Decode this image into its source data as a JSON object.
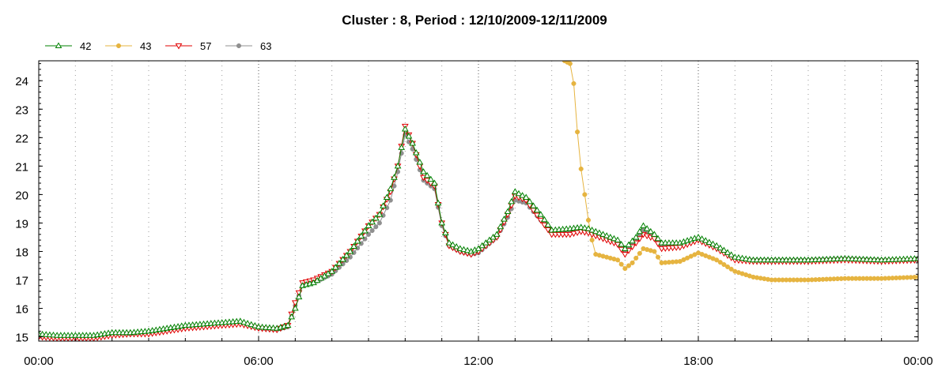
{
  "chart_data": {
    "type": "line",
    "title": "Cluster : 8, Period : 12/10/2009-12/11/2009",
    "xlabel": "",
    "ylabel": "",
    "x_unit": "hours",
    "xlim": [
      0,
      24
    ],
    "ylim": [
      14.85,
      24.7
    ],
    "x_ticks": [
      {
        "value": 0,
        "label": "00:00"
      },
      {
        "value": 6,
        "label": "06:00"
      },
      {
        "value": 12,
        "label": "12:00"
      },
      {
        "value": 18,
        "label": "18:00"
      },
      {
        "value": 24,
        "label": "00:00"
      }
    ],
    "y_ticks": [
      15,
      16,
      17,
      18,
      19,
      20,
      21,
      22,
      23,
      24
    ],
    "grid": "vertical dotted every hour",
    "legend_position": "top-left",
    "series": [
      {
        "name": "42",
        "color": "#008000",
        "marker": "triangle-up",
        "points": [
          [
            0,
            15.1
          ],
          [
            0.5,
            15.05
          ],
          [
            1,
            15.05
          ],
          [
            1.5,
            15.05
          ],
          [
            2,
            15.15
          ],
          [
            2.5,
            15.15
          ],
          [
            3,
            15.2
          ],
          [
            3.5,
            15.3
          ],
          [
            4,
            15.4
          ],
          [
            4.5,
            15.45
          ],
          [
            5,
            15.5
          ],
          [
            5.5,
            15.55
          ],
          [
            6,
            15.35
          ],
          [
            6.5,
            15.3
          ],
          [
            6.8,
            15.4
          ],
          [
            7.0,
            16.0
          ],
          [
            7.2,
            16.8
          ],
          [
            7.5,
            16.9
          ],
          [
            8,
            17.3
          ],
          [
            8.5,
            18.0
          ],
          [
            9,
            18.9
          ],
          [
            9.3,
            19.3
          ],
          [
            9.6,
            20.2
          ],
          [
            9.8,
            21.0
          ],
          [
            10.0,
            22.3
          ],
          [
            10.2,
            21.8
          ],
          [
            10.5,
            20.8
          ],
          [
            10.8,
            20.4
          ],
          [
            11,
            19.0
          ],
          [
            11.2,
            18.3
          ],
          [
            11.5,
            18.1
          ],
          [
            11.8,
            18.0
          ],
          [
            12,
            18.1
          ],
          [
            12.5,
            18.6
          ],
          [
            12.8,
            19.4
          ],
          [
            13,
            20.1
          ],
          [
            13.3,
            19.9
          ],
          [
            13.7,
            19.3
          ],
          [
            14,
            18.75
          ],
          [
            14.5,
            18.8
          ],
          [
            14.8,
            18.85
          ],
          [
            15,
            18.8
          ],
          [
            15.5,
            18.55
          ],
          [
            15.8,
            18.4
          ],
          [
            16,
            18.1
          ],
          [
            16.3,
            18.5
          ],
          [
            16.5,
            18.9
          ],
          [
            16.8,
            18.6
          ],
          [
            17,
            18.3
          ],
          [
            17.5,
            18.3
          ],
          [
            18,
            18.5
          ],
          [
            18.5,
            18.2
          ],
          [
            19,
            17.8
          ],
          [
            19.5,
            17.7
          ],
          [
            20,
            17.7
          ],
          [
            21,
            17.7
          ],
          [
            22,
            17.75
          ],
          [
            23,
            17.7
          ],
          [
            24,
            17.75
          ]
        ]
      },
      {
        "name": "43",
        "color": "#e6b440",
        "marker": "circle",
        "points": [
          [
            14.35,
            24.7
          ],
          [
            14.5,
            24.6
          ],
          [
            14.6,
            23.9
          ],
          [
            14.7,
            22.2
          ],
          [
            14.8,
            20.9
          ],
          [
            14.9,
            20.0
          ],
          [
            15.0,
            19.1
          ],
          [
            15.1,
            18.4
          ],
          [
            15.2,
            17.9
          ],
          [
            15.5,
            17.8
          ],
          [
            15.8,
            17.7
          ],
          [
            16.0,
            17.4
          ],
          [
            16.2,
            17.6
          ],
          [
            16.5,
            18.1
          ],
          [
            16.8,
            18.0
          ],
          [
            17.0,
            17.6
          ],
          [
            17.5,
            17.65
          ],
          [
            18,
            17.95
          ],
          [
            18.5,
            17.7
          ],
          [
            19,
            17.3
          ],
          [
            19.5,
            17.1
          ],
          [
            20,
            17.0
          ],
          [
            21,
            17.0
          ],
          [
            22,
            17.05
          ],
          [
            23,
            17.05
          ],
          [
            24,
            17.1
          ]
        ]
      },
      {
        "name": "57",
        "color": "#e00000",
        "marker": "triangle-down",
        "points": [
          [
            0,
            15.0
          ],
          [
            0.5,
            14.95
          ],
          [
            1,
            14.95
          ],
          [
            1.5,
            14.95
          ],
          [
            2,
            15.05
          ],
          [
            2.5,
            15.1
          ],
          [
            3,
            15.1
          ],
          [
            3.5,
            15.2
          ],
          [
            4,
            15.3
          ],
          [
            4.5,
            15.35
          ],
          [
            5,
            15.4
          ],
          [
            5.5,
            15.45
          ],
          [
            6,
            15.3
          ],
          [
            6.5,
            15.25
          ],
          [
            6.8,
            15.4
          ],
          [
            7.0,
            16.2
          ],
          [
            7.2,
            16.9
          ],
          [
            7.5,
            17.0
          ],
          [
            8,
            17.3
          ],
          [
            8.5,
            18.0
          ],
          [
            9,
            18.9
          ],
          [
            9.3,
            19.3
          ],
          [
            9.6,
            20.1
          ],
          [
            9.8,
            21.0
          ],
          [
            10.0,
            22.4
          ],
          [
            10.2,
            21.8
          ],
          [
            10.5,
            20.6
          ],
          [
            10.8,
            20.3
          ],
          [
            11,
            19.0
          ],
          [
            11.2,
            18.2
          ],
          [
            11.5,
            18.0
          ],
          [
            11.8,
            17.9
          ],
          [
            12,
            18.0
          ],
          [
            12.5,
            18.5
          ],
          [
            12.8,
            19.3
          ],
          [
            13,
            19.95
          ],
          [
            13.3,
            19.8
          ],
          [
            13.7,
            19.1
          ],
          [
            14,
            18.6
          ],
          [
            14.5,
            18.6
          ],
          [
            14.8,
            18.7
          ],
          [
            15,
            18.65
          ],
          [
            15.5,
            18.4
          ],
          [
            15.8,
            18.25
          ],
          [
            16,
            17.9
          ],
          [
            16.3,
            18.3
          ],
          [
            16.5,
            18.6
          ],
          [
            16.8,
            18.45
          ],
          [
            17,
            18.1
          ],
          [
            17.5,
            18.15
          ],
          [
            18,
            18.4
          ],
          [
            18.5,
            18.1
          ],
          [
            19,
            17.7
          ],
          [
            19.5,
            17.65
          ],
          [
            20,
            17.65
          ],
          [
            21,
            17.65
          ],
          [
            22,
            17.7
          ],
          [
            23,
            17.65
          ],
          [
            24,
            17.7
          ]
        ]
      },
      {
        "name": "63",
        "color": "#909090",
        "marker": "circle",
        "points": [
          [
            0,
            15.0
          ],
          [
            0.5,
            15.0
          ],
          [
            1,
            15.0
          ],
          [
            1.5,
            15.0
          ],
          [
            2,
            15.1
          ],
          [
            2.5,
            15.1
          ],
          [
            3,
            15.15
          ],
          [
            3.5,
            15.25
          ],
          [
            4,
            15.35
          ],
          [
            4.5,
            15.4
          ],
          [
            5,
            15.45
          ],
          [
            5.5,
            15.5
          ],
          [
            6,
            15.3
          ],
          [
            6.5,
            15.25
          ],
          [
            6.8,
            15.35
          ],
          [
            7.0,
            16.1
          ],
          [
            7.2,
            16.8
          ],
          [
            7.5,
            16.9
          ],
          [
            8,
            17.2
          ],
          [
            8.5,
            17.8
          ],
          [
            9,
            18.6
          ],
          [
            9.3,
            19.0
          ],
          [
            9.6,
            19.8
          ],
          [
            9.8,
            20.8
          ],
          [
            10.0,
            22.1
          ],
          [
            10.2,
            21.6
          ],
          [
            10.5,
            20.5
          ],
          [
            10.8,
            20.2
          ],
          [
            11,
            18.9
          ],
          [
            11.2,
            18.2
          ],
          [
            11.5,
            18.0
          ],
          [
            11.8,
            17.9
          ],
          [
            12,
            17.95
          ],
          [
            12.5,
            18.5
          ],
          [
            12.8,
            19.2
          ],
          [
            13,
            19.8
          ],
          [
            13.3,
            19.7
          ],
          [
            13.7,
            19.1
          ],
          [
            14,
            18.7
          ],
          [
            14.5,
            18.7
          ],
          [
            14.8,
            18.75
          ],
          [
            15,
            18.7
          ],
          [
            15.5,
            18.45
          ],
          [
            15.8,
            18.3
          ],
          [
            16,
            17.95
          ],
          [
            16.3,
            18.4
          ],
          [
            16.5,
            18.75
          ],
          [
            16.8,
            18.5
          ],
          [
            17,
            18.2
          ],
          [
            17.5,
            18.2
          ],
          [
            18,
            18.45
          ],
          [
            18.5,
            18.15
          ],
          [
            19,
            17.75
          ],
          [
            19.5,
            17.7
          ],
          [
            20,
            17.7
          ],
          [
            21,
            17.7
          ],
          [
            22,
            17.75
          ],
          [
            23,
            17.7
          ],
          [
            24,
            17.7
          ]
        ]
      }
    ]
  }
}
